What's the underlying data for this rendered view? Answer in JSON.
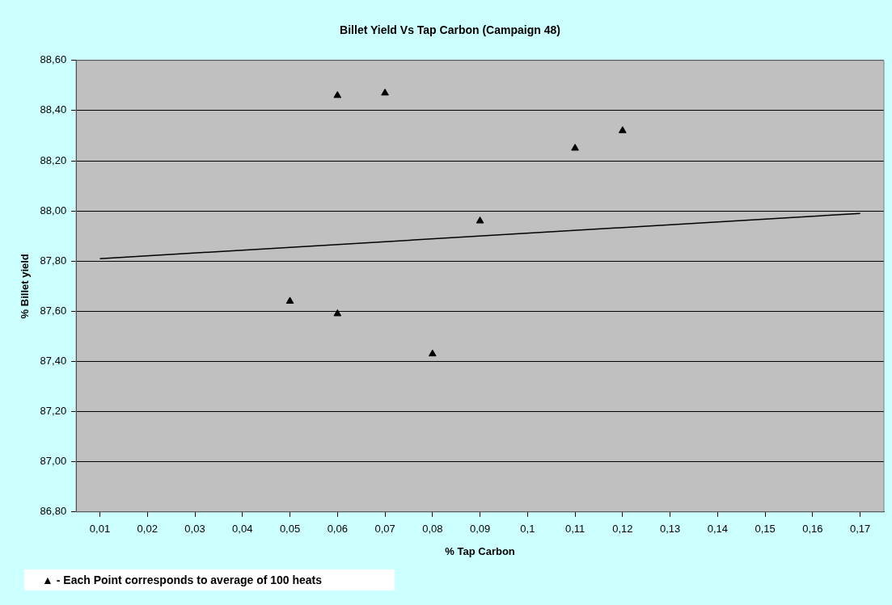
{
  "chart_data": {
    "type": "scatter",
    "title": "Billet Yield Vs Tap Carbon (Campaign 48)",
    "xlabel": "% Tap Carbon",
    "ylabel": "% Billet yield",
    "series": [
      {
        "color": "#000000",
        "marker": "triangle",
        "x": [
          0.05,
          0.06,
          0.06,
          0.07,
          0.08,
          0.09,
          0.11,
          0.12
        ],
        "values": [
          87.64,
          87.59,
          88.46,
          88.47,
          87.43,
          87.96,
          88.25,
          88.32
        ]
      },
      {
        "type": "line",
        "color": "#000000",
        "marker": "none",
        "line_style": "solid",
        "x": [
          0.01,
          0.17
        ],
        "values": [
          87.81,
          87.99
        ]
      }
    ],
    "xlim": [
      0.005,
      0.175
    ],
    "xticks": [
      {
        "value": 0.01,
        "label": "0,01"
      },
      {
        "value": 0.02,
        "label": "0,02"
      },
      {
        "value": 0.03,
        "label": "0,03"
      },
      {
        "value": 0.04,
        "label": "0,04"
      },
      {
        "value": 0.05,
        "label": "0,05"
      },
      {
        "value": 0.06,
        "label": "0,06"
      },
      {
        "value": 0.07,
        "label": "0,07"
      },
      {
        "value": 0.08,
        "label": "0,08"
      },
      {
        "value": 0.09,
        "label": "0,09"
      },
      {
        "value": 0.1,
        "label": "0,1"
      },
      {
        "value": 0.11,
        "label": "0,11"
      },
      {
        "value": 0.12,
        "label": "0,12"
      },
      {
        "value": 0.13,
        "label": "0,13"
      },
      {
        "value": 0.14,
        "label": "0,14"
      },
      {
        "value": 0.15,
        "label": "0,15"
      },
      {
        "value": 0.16,
        "label": "0,16"
      },
      {
        "value": 0.17,
        "label": "0,17"
      }
    ],
    "ylim": [
      86.8,
      88.6
    ],
    "yticks": [
      {
        "value": 86.8,
        "label": "86,80"
      },
      {
        "value": 87.0,
        "label": "87,00"
      },
      {
        "value": 87.2,
        "label": "87,20"
      },
      {
        "value": 87.4,
        "label": "87,40"
      },
      {
        "value": 87.6,
        "label": "87,60"
      },
      {
        "value": 87.8,
        "label": "87,80"
      },
      {
        "value": 88.0,
        "label": "88,00"
      },
      {
        "value": 88.2,
        "label": "88,20"
      },
      {
        "value": 88.4,
        "label": "88,40"
      },
      {
        "value": 88.6,
        "label": "88,60"
      }
    ],
    "grid": "y",
    "legend": false,
    "annotations": [
      "▲ - Each Point corresponds to average of 100 heats"
    ]
  }
}
